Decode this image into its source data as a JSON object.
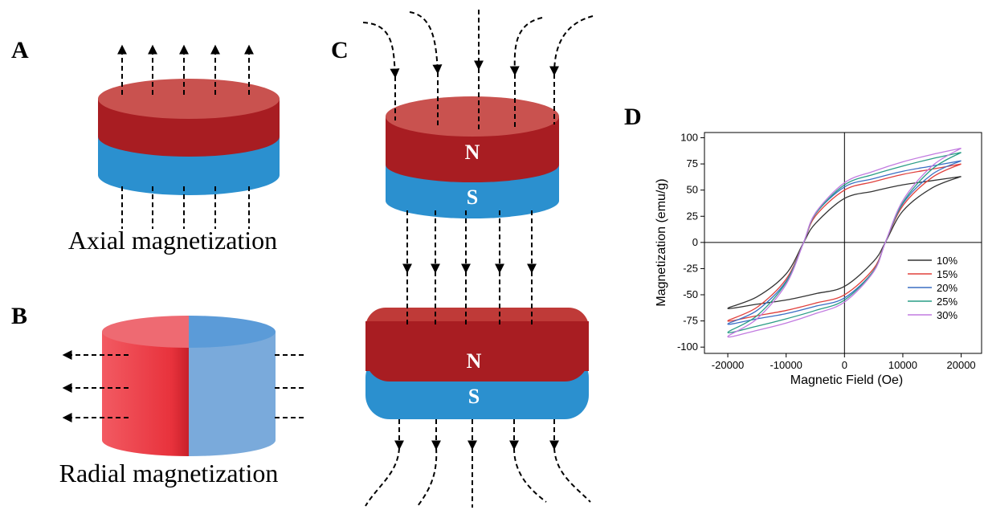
{
  "panels": {
    "a": {
      "label": "A",
      "caption": "Axial magnetization"
    },
    "b": {
      "label": "B",
      "caption": "Radial magnetization"
    },
    "c": {
      "label": "C",
      "poles": [
        "N",
        "S",
        "N",
        "S"
      ]
    },
    "d": {
      "label": "D"
    }
  },
  "chart_data": {
    "type": "line",
    "xlabel": "Magnetic Field (Oe)",
    "ylabel": "Magnetization (emu/g)",
    "x": [
      20000,
      15000,
      10000,
      5000,
      0,
      -5000,
      -7000,
      -10000,
      -15000,
      -20000,
      -15000,
      -10000,
      -5000,
      0,
      5000,
      7000,
      10000,
      15000,
      20000
    ],
    "series": [
      {
        "name": "10%",
        "color": "#333333",
        "values": [
          63,
          59,
          55,
          49,
          42,
          18,
          0,
          -30,
          -52,
          -63,
          -59,
          -55,
          -49,
          -42,
          -18,
          0,
          30,
          52,
          63
        ]
      },
      {
        "name": "15%",
        "color": "#e0403c",
        "values": [
          75,
          70,
          65,
          58,
          50,
          25,
          0,
          -35,
          -62,
          -75,
          -70,
          -65,
          -58,
          -50,
          -25,
          0,
          35,
          62,
          75
        ]
      },
      {
        "name": "20%",
        "color": "#3a6fc4",
        "values": [
          78,
          73,
          68,
          61,
          53,
          27,
          0,
          -37,
          -65,
          -78,
          -73,
          -68,
          -61,
          -53,
          -27,
          0,
          37,
          65,
          78
        ]
      },
      {
        "name": "25%",
        "color": "#2a9d86",
        "values": [
          86,
          80,
          73,
          65,
          55,
          27,
          0,
          -38,
          -70,
          -86,
          -80,
          -73,
          -65,
          -55,
          -27,
          0,
          38,
          70,
          86
        ]
      },
      {
        "name": "30%",
        "color": "#c27be0",
        "values": [
          90,
          84,
          77,
          68,
          57,
          28,
          0,
          -40,
          -73,
          -90,
          -84,
          -77,
          -68,
          -57,
          -28,
          0,
          40,
          73,
          90
        ]
      }
    ],
    "xlim": [
      -24000,
      23500
    ],
    "ylim": [
      -106,
      105
    ],
    "xticks": [
      -20000,
      -10000,
      0,
      10000,
      20000
    ],
    "yticks": [
      -100,
      -75,
      -50,
      -25,
      0,
      25,
      50,
      75,
      100
    ],
    "zero_lines": true,
    "legend": "lower right"
  }
}
